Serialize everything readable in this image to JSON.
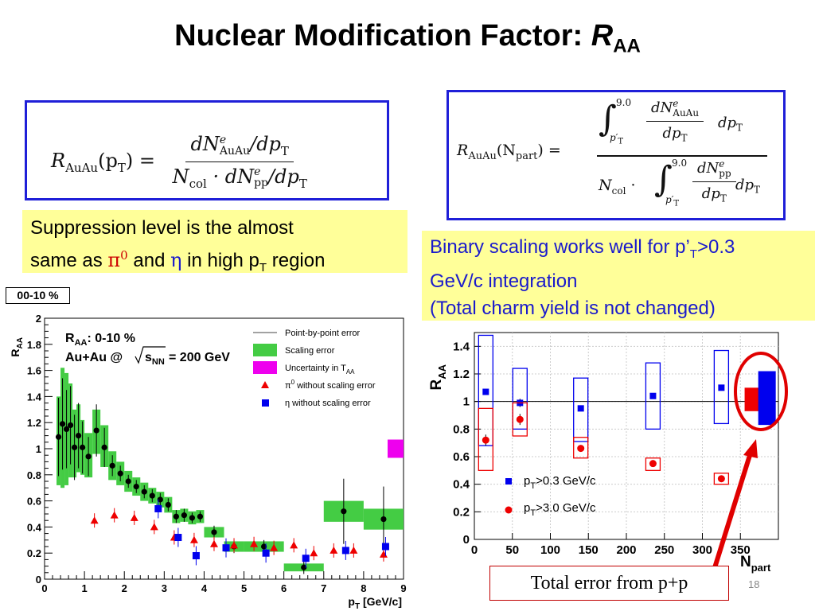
{
  "slide": {
    "title_main": "Nuclear Modification Factor: ",
    "title_r": "R",
    "title_sub": "AA",
    "page_number": "18",
    "error_note": "Total error from p+p"
  },
  "equation1": {
    "lhs": "R",
    "lhs_sub": "AuAu",
    "lhs_arg": "(p",
    "lhs_arg_sub": "T",
    "lhs_close": ") =",
    "num": "dN",
    "num_sup": "e",
    "num_sub": "AuAu",
    "num_tail": "/dp",
    "num_tail_sub": "T",
    "den_a": "N",
    "den_a_sub": "col",
    "den_b": " · dN",
    "den_b_sup": "e",
    "den_b_sub": "pp",
    "den_tail": "/dp",
    "den_tail_sub": "T"
  },
  "equation2": {
    "lhs": "R",
    "lhs_sub": "AuAu",
    "lhs_arg": "(N",
    "lhs_arg_sub": "part",
    "lhs_close": ") =",
    "int_upper": "9.0",
    "int_lower": "p′",
    "int_lower_sub": "T",
    "num_frac_num": "dN",
    "num_frac_num_sup": "e",
    "num_frac_num_sub": "AuAu",
    "num_frac_den": "dp",
    "num_frac_den_sub": "T",
    "num_tail": "dp",
    "num_tail_sub": "T",
    "den_lead": "N",
    "den_lead_sub": "col",
    "den_dot": " · ",
    "den_frac_num": "dN",
    "den_frac_num_sup": "e",
    "den_frac_num_sub": "pp",
    "den_frac_den": "dp",
    "den_frac_den_sub": "T",
    "den_tail": "dp",
    "den_tail_sub": "T"
  },
  "note_left": {
    "l1": "Suppression level is the almost",
    "l2a": "same as ",
    "pi": "π",
    "pi_sup": "0",
    "l2b": " and ",
    "eta": "η",
    "l2c": " in high p",
    "l2c_sub": "T",
    "l2d": " region"
  },
  "note_right": {
    "l1a": "Binary scaling works well for p’",
    "l1a_sub": "T",
    "l1b": ">0.3",
    "l2": "GeV/c integration",
    "l3": "(Total charm yield is not changed)"
  },
  "centrality_tag": "00-10 %",
  "colors": {
    "blue_box": "#1f1fd8",
    "note_bg": "#ffff99",
    "scaling_green": "#44cc44",
    "uncertainty_magenta": "#ee00ee",
    "pi0_red": "#ee0000",
    "eta_blue": "#0000ee",
    "highlight_red": "#e00000"
  },
  "chart_data": [
    {
      "type": "scatter",
      "annotation_line1": "R",
      "annotation_line1_sub": "AA",
      "annotation_line1_tail": ": 0-10 %",
      "annotation_line2a": "Au+Au @ ",
      "annotation_line2_root": "s",
      "annotation_line2_root_sub": "NN",
      "annotation_line2b": " = 200 GeV",
      "xlabel": "p",
      "xlabel_sub": "T",
      "xlabel_tail": " [GeV/c]",
      "ylabel": "R",
      "ylabel_sub": "AA",
      "xlim": [
        0,
        9
      ],
      "ylim": [
        0,
        2
      ],
      "xticks": [
        "0",
        "1",
        "2",
        "3",
        "4",
        "5",
        "6",
        "7",
        "8",
        "9"
      ],
      "yticks": [
        "0",
        "0.2",
        "0.4",
        "0.6",
        "0.8",
        "1",
        "1.2",
        "1.4",
        "1.6",
        "1.8",
        "2"
      ],
      "legend_placement": "top-right",
      "legend": [
        {
          "kind": "line",
          "label": "Point-by-point error"
        },
        {
          "kind": "green-box",
          "label": "Scaling error"
        },
        {
          "kind": "magenta-box",
          "label": "Uncertainty in T",
          "label_sub": "AA"
        },
        {
          "kind": "red-triangle",
          "label": "π",
          "label_sup": "0",
          "label_tail": " without scaling error"
        },
        {
          "kind": "blue-square",
          "label": "η",
          "label_tail": " without scaling error"
        }
      ],
      "series": [
        {
          "marker": "black-circle",
          "points": [
            {
              "x": 0.35,
              "y": 1.09,
              "err": 0.3
            },
            {
              "x": 0.45,
              "y": 1.19,
              "err": 0.35
            },
            {
              "x": 0.55,
              "y": 1.15,
              "err": 0.3
            },
            {
              "x": 0.65,
              "y": 1.18,
              "err": 0.3
            },
            {
              "x": 0.75,
              "y": 1.01,
              "err": 0.25
            },
            {
              "x": 0.85,
              "y": 1.1,
              "err": 0.25
            },
            {
              "x": 0.95,
              "y": 1.01,
              "err": 0.2
            },
            {
              "x": 1.1,
              "y": 0.94,
              "err": 0.15
            },
            {
              "x": 1.3,
              "y": 1.14,
              "err": 0.2
            },
            {
              "x": 1.5,
              "y": 1.01,
              "err": 0.15
            },
            {
              "x": 1.7,
              "y": 0.87,
              "err": 0.08
            },
            {
              "x": 1.9,
              "y": 0.81,
              "err": 0.06
            },
            {
              "x": 2.1,
              "y": 0.75,
              "err": 0.05
            },
            {
              "x": 2.3,
              "y": 0.71,
              "err": 0.05
            },
            {
              "x": 2.5,
              "y": 0.67,
              "err": 0.05
            },
            {
              "x": 2.7,
              "y": 0.64,
              "err": 0.05
            },
            {
              "x": 2.9,
              "y": 0.61,
              "err": 0.05
            },
            {
              "x": 3.1,
              "y": 0.57,
              "err": 0.05
            },
            {
              "x": 3.3,
              "y": 0.48,
              "err": 0.05
            },
            {
              "x": 3.5,
              "y": 0.49,
              "err": 0.05
            },
            {
              "x": 3.7,
              "y": 0.47,
              "err": 0.04
            },
            {
              "x": 3.9,
              "y": 0.48,
              "err": 0.04
            },
            {
              "x": 4.25,
              "y": 0.36,
              "err": 0.05
            },
            {
              "x": 4.75,
              "y": 0.25,
              "err": 0.05
            },
            {
              "x": 5.5,
              "y": 0.25,
              "err": 0.05
            },
            {
              "x": 6.5,
              "y": 0.09,
              "err": 0.05
            },
            {
              "x": 7.5,
              "y": 0.52,
              "err": 0.25
            },
            {
              "x": 8.5,
              "y": 0.46,
              "err": 0.25
            }
          ]
        },
        {
          "marker": "red-triangle",
          "points": [
            {
              "x": 1.25,
              "y": 0.45
            },
            {
              "x": 1.75,
              "y": 0.49
            },
            {
              "x": 2.25,
              "y": 0.47
            },
            {
              "x": 2.75,
              "y": 0.4
            },
            {
              "x": 3.25,
              "y": 0.32
            },
            {
              "x": 3.75,
              "y": 0.3
            },
            {
              "x": 4.25,
              "y": 0.27
            },
            {
              "x": 4.75,
              "y": 0.26
            },
            {
              "x": 5.25,
              "y": 0.27
            },
            {
              "x": 5.75,
              "y": 0.24
            },
            {
              "x": 6.25,
              "y": 0.26
            },
            {
              "x": 6.75,
              "y": 0.2
            },
            {
              "x": 7.25,
              "y": 0.22
            },
            {
              "x": 7.75,
              "y": 0.22
            },
            {
              "x": 8.5,
              "y": 0.19
            }
          ]
        },
        {
          "marker": "blue-square",
          "points": [
            {
              "x": 2.85,
              "y": 0.54
            },
            {
              "x": 3.35,
              "y": 0.32
            },
            {
              "x": 3.8,
              "y": 0.18
            },
            {
              "x": 4.55,
              "y": 0.24
            },
            {
              "x": 5.55,
              "y": 0.2
            },
            {
              "x": 6.55,
              "y": 0.16
            },
            {
              "x": 7.55,
              "y": 0.22
            },
            {
              "x": 8.55,
              "y": 0.25
            }
          ]
        }
      ],
      "scaling_error_band": [
        {
          "x0": 0.3,
          "x1": 0.4,
          "y0": 0.72,
          "y1": 1.4
        },
        {
          "x0": 0.4,
          "x1": 0.5,
          "y0": 0.7,
          "y1": 1.62
        },
        {
          "x0": 0.5,
          "x1": 0.6,
          "y0": 0.72,
          "y1": 1.58
        },
        {
          "x0": 0.6,
          "x1": 0.7,
          "y0": 0.78,
          "y1": 1.5
        },
        {
          "x0": 0.7,
          "x1": 0.8,
          "y0": 0.78,
          "y1": 1.3
        },
        {
          "x0": 0.8,
          "x1": 0.9,
          "y0": 0.82,
          "y1": 1.34
        },
        {
          "x0": 0.9,
          "x1": 1.0,
          "y0": 0.8,
          "y1": 1.22
        },
        {
          "x0": 1.0,
          "x1": 1.2,
          "y0": 0.78,
          "y1": 1.12
        },
        {
          "x0": 1.2,
          "x1": 1.4,
          "y0": 0.96,
          "y1": 1.3
        },
        {
          "x0": 1.4,
          "x1": 1.6,
          "y0": 0.86,
          "y1": 1.18
        },
        {
          "x0": 1.6,
          "x1": 1.8,
          "y0": 0.76,
          "y1": 0.98
        },
        {
          "x0": 1.8,
          "x1": 2.0,
          "y0": 0.72,
          "y1": 0.9
        },
        {
          "x0": 2.0,
          "x1": 2.2,
          "y0": 0.67,
          "y1": 0.83
        },
        {
          "x0": 2.2,
          "x1": 2.4,
          "y0": 0.64,
          "y1": 0.78
        },
        {
          "x0": 2.4,
          "x1": 2.6,
          "y0": 0.6,
          "y1": 0.74
        },
        {
          "x0": 2.6,
          "x1": 2.8,
          "y0": 0.58,
          "y1": 0.7
        },
        {
          "x0": 2.8,
          "x1": 3.0,
          "y0": 0.55,
          "y1": 0.67
        },
        {
          "x0": 3.0,
          "x1": 3.2,
          "y0": 0.51,
          "y1": 0.63
        },
        {
          "x0": 3.2,
          "x1": 3.4,
          "y0": 0.43,
          "y1": 0.53
        },
        {
          "x0": 3.4,
          "x1": 3.6,
          "y0": 0.44,
          "y1": 0.54
        },
        {
          "x0": 3.6,
          "x1": 3.8,
          "y0": 0.42,
          "y1": 0.52
        },
        {
          "x0": 3.8,
          "x1": 4.0,
          "y0": 0.43,
          "y1": 0.53
        },
        {
          "x0": 4.0,
          "x1": 4.5,
          "y0": 0.32,
          "y1": 0.4
        },
        {
          "x0": 4.5,
          "x1": 5.0,
          "y0": 0.21,
          "y1": 0.29
        },
        {
          "x0": 5.0,
          "x1": 6.0,
          "y0": 0.21,
          "y1": 0.29
        },
        {
          "x0": 6.0,
          "x1": 7.0,
          "y0": 0.06,
          "y1": 0.12
        },
        {
          "x0": 7.0,
          "x1": 8.0,
          "y0": 0.44,
          "y1": 0.6
        },
        {
          "x0": 8.0,
          "x1": 9.0,
          "y0": 0.38,
          "y1": 0.54
        }
      ],
      "tAA_uncertainty": {
        "y0": 0.93,
        "y1": 1.07
      }
    },
    {
      "type": "scatter",
      "xlabel": "N",
      "xlabel_sub": "part",
      "ylabel": "R",
      "ylabel_sub": "AA",
      "xlim": [
        0,
        400
      ],
      "ylim": [
        0,
        1.5
      ],
      "xticks": [
        "0",
        "50",
        "100",
        "150",
        "200",
        "250",
        "300",
        "350"
      ],
      "yticks": [
        "0",
        "0.2",
        "0.4",
        "0.6",
        "0.8",
        "1",
        "1.2",
        "1.4"
      ],
      "grid": true,
      "reference_line_y": 1,
      "legend_placement": "bottom-left",
      "legend": [
        {
          "marker": "blue-square",
          "label": "p",
          "label_sub": "T",
          "label_tail": ">0.3 GeV/c"
        },
        {
          "marker": "red-circle",
          "label": "p",
          "label_sub": "T",
          "label_tail": ">3.0 GeV/c"
        }
      ],
      "series": [
        {
          "marker": "blue-square",
          "points": [
            {
              "x": 15,
              "y": 1.07,
              "box": [
                0.68,
                1.48
              ],
              "err": 0
            },
            {
              "x": 60,
              "y": 0.99,
              "box": [
                0.8,
                1.24
              ],
              "err": 0.03
            },
            {
              "x": 140,
              "y": 0.95,
              "box": [
                0.71,
                1.17
              ],
              "err": 0
            },
            {
              "x": 235,
              "y": 1.04,
              "box": [
                0.8,
                1.28
              ],
              "err": 0
            },
            {
              "x": 325,
              "y": 1.1,
              "box": [
                0.84,
                1.37
              ],
              "err": 0
            }
          ]
        },
        {
          "marker": "red-circle",
          "points": [
            {
              "x": 15,
              "y": 0.72,
              "box": [
                0.5,
                0.95
              ],
              "err": 0.04
            },
            {
              "x": 60,
              "y": 0.87,
              "box": [
                0.75,
                0.99
              ],
              "err": 0.04
            },
            {
              "x": 140,
              "y": 0.66,
              "box": [
                0.59,
                0.74
              ],
              "err": 0
            },
            {
              "x": 235,
              "y": 0.55,
              "box": [
                0.5,
                0.59
              ],
              "err": 0
            },
            {
              "x": 325,
              "y": 0.44,
              "box": [
                0.4,
                0.48
              ],
              "err": 0
            }
          ]
        }
      ],
      "pp_error_bars": [
        {
          "x": 365,
          "y0": 0.93,
          "y1": 1.1,
          "series": "red"
        },
        {
          "x": 385,
          "y0": 0.83,
          "y1": 1.22,
          "series": "blue"
        }
      ]
    }
  ]
}
